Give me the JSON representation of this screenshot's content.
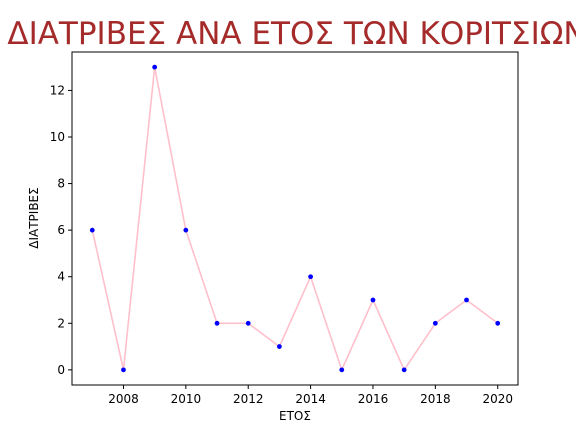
{
  "chart_data": {
    "type": "line",
    "title": "ΔΙΑΤΡΙΒΕΣ ΑΝΑ ΕΤΟΣ ΤΩΝ ΚΟΡΙΤΣΙΩΝ",
    "xlabel": "ΕΤΟΣ",
    "ylabel": "ΔΙΑΤΡΙΒΕΣ",
    "x": [
      2007,
      2008,
      2009,
      2010,
      2011,
      2012,
      2013,
      2014,
      2015,
      2016,
      2017,
      2018,
      2019,
      2020
    ],
    "values": [
      6,
      0,
      13,
      6,
      2,
      2,
      1,
      4,
      0,
      3,
      0,
      2,
      3,
      2
    ],
    "xlim": [
      2006.35,
      2020.65
    ],
    "ylim": [
      -0.65,
      13.65
    ],
    "xticks": [
      2008,
      2010,
      2012,
      2014,
      2016,
      2018,
      2020
    ],
    "yticks": [
      0,
      2,
      4,
      6,
      8,
      10,
      12
    ],
    "grid": false,
    "line_color": "#ffc0cb",
    "marker_color": "#0000ff",
    "title_color": "#a52a2a"
  }
}
